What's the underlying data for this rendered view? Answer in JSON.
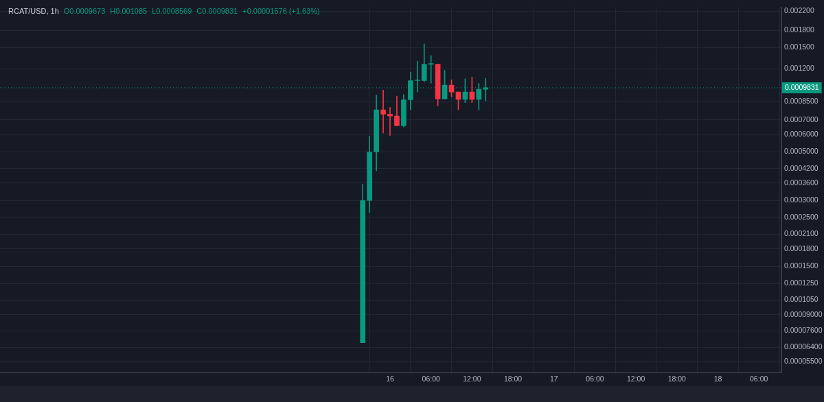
{
  "chart_data": {
    "type": "candlestick",
    "title": "RCAT/USD, 1h",
    "annotations": [
      "O0.0009673",
      "H0.001085",
      "L0.0008569",
      "C0.0009831",
      "+0.00001576 (+1.63%)"
    ],
    "x": [
      "--05-15T20:00",
      "--05-15T21:00",
      "--05-15T22:00",
      "--05-15T23:00",
      "--05-16T00:00",
      "--05-16T01:00",
      "--05-16T02:00",
      "--05-16T03:00",
      "--05-16T04:00",
      "--05-16T05:00",
      "--05-16T06:00",
      "--05-16T07:00",
      "--05-16T08:00",
      "--05-16T09:00",
      "--05-16T10:00",
      "--05-16T11:00",
      "--05-16T12:00",
      "--05-16T13:00",
      "--05-16T14:00"
    ],
    "ohlc": [
      [
        6.7e-05,
        0.000356,
        6.7e-05,
        0.0003
      ],
      [
        0.0003,
        0.00059,
        0.000264,
        0.0005
      ],
      [
        0.0005,
        0.00091,
        0.00041,
        0.00078
      ],
      [
        0.00078,
        0.00096,
        0.00061,
        0.000745
      ],
      [
        0.000745,
        0.0008,
        0.000595,
        0.00073
      ],
      [
        0.00073,
        0.0009,
        0.00066,
        0.00066
      ],
      [
        0.00066,
        0.000915,
        0.00065,
        0.000866
      ],
      [
        0.000866,
        0.00116,
        0.00078,
        0.00106
      ],
      [
        0.00106,
        0.0013,
        0.00094,
        0.00106
      ],
      [
        0.00106,
        0.00156,
        0.00105,
        0.00126
      ],
      [
        0.00126,
        0.00138,
        0.00103,
        0.00126
      ],
      [
        0.00126,
        0.00126,
        0.00081,
        0.000875
      ],
      [
        0.000875,
        0.00118,
        0.000875,
        0.00101
      ],
      [
        0.00101,
        0.00107,
        0.000894,
        0.00094
      ],
      [
        0.00094,
        0.00094,
        0.00078,
        0.00087
      ],
      [
        0.00087,
        0.00108,
        0.00084,
        0.00094
      ],
      [
        0.00094,
        0.0011,
        0.00084,
        0.00087
      ],
      [
        0.00087,
        0.00103,
        0.00078,
        0.0009673
      ],
      [
        0.0009673,
        0.001085,
        0.0008569,
        0.0009831
      ]
    ],
    "colors": [
      "#089981",
      "#089981",
      "#089981",
      "#f23645",
      "#f23645",
      "#f23645",
      "#089981",
      "#089981",
      "#089981",
      "#089981",
      "#089981",
      "#f23645",
      "#089981",
      "#f23645",
      "#f23645",
      "#089981",
      "#f23645",
      "#089981",
      "#089981"
    ],
    "log": true,
    "xlim": [
      "--05-13T14:54",
      "--05-18T09:18"
    ],
    "xticks": [
      {
        "value": "--05-16",
        "label": "16"
      },
      {
        "value": "--05-16T06:00",
        "label": "06:00"
      },
      {
        "value": "--05-16T12:00",
        "label": "12:00"
      },
      {
        "value": "--05-16T18:00",
        "label": "18:00"
      },
      {
        "value": "--05-17",
        "label": "17"
      },
      {
        "value": "--05-17T06:00",
        "label": "06:00"
      },
      {
        "value": "--05-17T12:00",
        "label": "12:00"
      },
      {
        "value": "--05-17T18:00",
        "label": "18:00"
      },
      {
        "value": "--05-18",
        "label": "18"
      },
      {
        "value": "--05-18T06:00",
        "label": "06:00"
      }
    ],
    "ylim": [
      4.9e-05,
      0.0023
    ],
    "yticks": [
      {
        "value": 0.0022,
        "label": "0.002200"
      },
      {
        "value": 0.0018,
        "label": "0.001800"
      },
      {
        "value": 0.0015,
        "label": "0.001500"
      },
      {
        "value": 0.0012,
        "label": "0.001200"
      },
      {
        "value": 0.00085,
        "label": "0.0008500"
      },
      {
        "value": 0.0007,
        "label": "0.0007000"
      },
      {
        "value": 0.0006,
        "label": "0.0006000"
      },
      {
        "value": 0.0005,
        "label": "0.0005000"
      },
      {
        "value": 0.00042,
        "label": "0.0004200"
      },
      {
        "value": 0.00036,
        "label": "0.0003600"
      },
      {
        "value": 0.0003,
        "label": "0.0003000"
      },
      {
        "value": 0.00025,
        "label": "0.0002500"
      },
      {
        "value": 0.00021,
        "label": "0.0002100"
      },
      {
        "value": 0.00018,
        "label": "0.0001800"
      },
      {
        "value": 0.00015,
        "label": "0.0001500"
      },
      {
        "value": 0.000125,
        "label": "0.0001250"
      },
      {
        "value": 0.000105,
        "label": "0.0001050"
      },
      {
        "value": 9e-05,
        "label": "0.00009000"
      },
      {
        "value": 7.6e-05,
        "label": "0.00007600"
      },
      {
        "value": 6.4e-05,
        "label": "0.00006400"
      },
      {
        "value": 5.5e-05,
        "label": "0.00005500"
      }
    ],
    "ref_lines": [
      {
        "axis": "y",
        "value": 0.0009831,
        "label": "0.0009831",
        "color": "#089981",
        "line_style": "dotted"
      }
    ],
    "grid": true
  }
}
